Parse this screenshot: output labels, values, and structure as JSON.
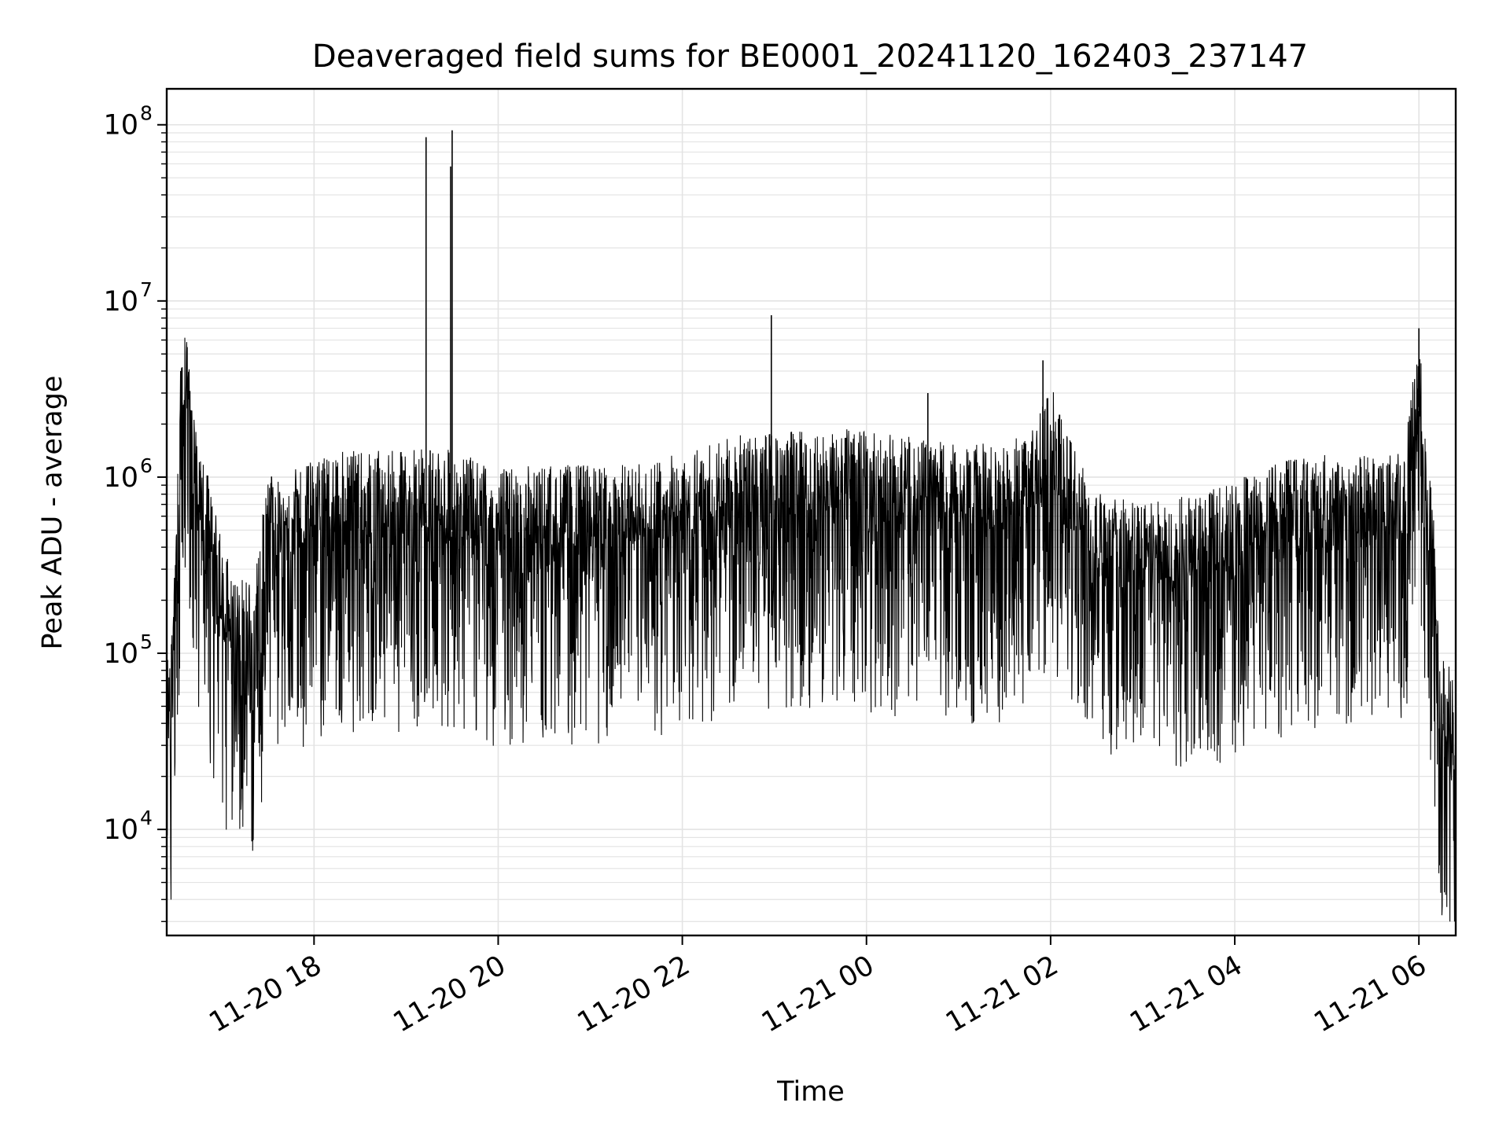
{
  "chart_data": {
    "type": "line",
    "title": "Deaveraged field sums for BE0001_20241120_162403_237147",
    "xlabel": "Time",
    "ylabel": "Peak ADU - average",
    "yscale": "log",
    "grid": true,
    "series_color": "#000000",
    "grid_color": "#e3e3e3",
    "xlim": [
      "2024-11-20 16:24",
      "2024-11-21 06:24"
    ],
    "ylim": [
      2500,
      160000000
    ],
    "x_ticks": [
      {
        "value": "2024-11-20 18:00",
        "label": "11-20 18"
      },
      {
        "value": "2024-11-20 20:00",
        "label": "11-20 20"
      },
      {
        "value": "2024-11-20 22:00",
        "label": "11-20 22"
      },
      {
        "value": "2024-11-21 00:00",
        "label": "11-21 00"
      },
      {
        "value": "2024-11-21 02:00",
        "label": "11-21 02"
      },
      {
        "value": "2024-11-21 04:00",
        "label": "11-21 04"
      },
      {
        "value": "2024-11-21 06:00",
        "label": "11-21 06"
      }
    ],
    "y_ticks": [
      {
        "value": 10000,
        "base": "10",
        "exp": "4"
      },
      {
        "value": 100000,
        "base": "10",
        "exp": "5"
      },
      {
        "value": 1000000,
        "base": "10",
        "exp": "6"
      },
      {
        "value": 10000000,
        "base": "10",
        "exp": "7"
      },
      {
        "value": 100000000,
        "base": "10",
        "exp": "8"
      }
    ],
    "series": [
      {
        "x": [
          "2024-11-20 16:24",
          "2024-11-20 16:27",
          "2024-11-20 16:30",
          "2024-11-20 16:33",
          "2024-11-20 16:36",
          "2024-11-20 16:39",
          "2024-11-20 16:42",
          "2024-11-20 16:45",
          "2024-11-20 16:50",
          "2024-11-20 16:55",
          "2024-11-20 17:00",
          "2024-11-20 17:10",
          "2024-11-20 17:20",
          "2024-11-20 17:30",
          "2024-11-20 17:40",
          "2024-11-20 17:50",
          "2024-11-20 18:00",
          "2024-11-20 18:15",
          "2024-11-20 18:30",
          "2024-11-20 18:45",
          "2024-11-20 19:00",
          "2024-11-20 19:13",
          "2024-11-20 19:30",
          "2024-11-20 19:45",
          "2024-11-20 20:00",
          "2024-11-20 20:30",
          "2024-11-20 21:00",
          "2024-11-20 21:30",
          "2024-11-20 22:00",
          "2024-11-20 22:30",
          "2024-11-20 23:00",
          "2024-11-20 23:30",
          "2024-11-21 00:00",
          "2024-11-21 00:30",
          "2024-11-21 01:00",
          "2024-11-21 01:30",
          "2024-11-21 01:50",
          "2024-11-21 02:00",
          "2024-11-21 02:10",
          "2024-11-21 02:30",
          "2024-11-21 03:00",
          "2024-11-21 03:30",
          "2024-11-21 04:00",
          "2024-11-21 04:30",
          "2024-11-21 05:00",
          "2024-11-21 05:30",
          "2024-11-21 05:50",
          "2024-11-21 06:00",
          "2024-11-21 06:05",
          "2024-11-21 06:10",
          "2024-11-21 06:15",
          "2024-11-21 06:20",
          "2024-11-21 06:24"
        ],
        "y": [
          30000,
          50000,
          150000,
          1500000,
          2500000,
          1500000,
          800000,
          600000,
          400000,
          250000,
          150000,
          100000,
          90000,
          350000,
          400000,
          400000,
          450000,
          500000,
          500000,
          500000,
          500000,
          550000,
          500000,
          450000,
          400000,
          420000,
          420000,
          420000,
          500000,
          600000,
          650000,
          680000,
          650000,
          600000,
          550000,
          550000,
          700000,
          1200000,
          700000,
          300000,
          250000,
          280000,
          350000,
          450000,
          480000,
          480000,
          500000,
          2500000,
          600000,
          200000,
          35000,
          30000,
          20000
        ]
      }
    ],
    "spikes": [
      {
        "x": "2024-11-20 19:13",
        "y": 85000000
      },
      {
        "x": "2024-11-20 19:30",
        "y": 93000000
      },
      {
        "x": "2024-11-20 19:29",
        "y": 58000000
      },
      {
        "x": "2024-11-20 22:58",
        "y": 8300000
      },
      {
        "x": "2024-11-21 06:00",
        "y": 7000000
      },
      {
        "x": "2024-11-20 16:34",
        "y": 4200000
      },
      {
        "x": "2024-11-21 01:55",
        "y": 4600000
      },
      {
        "x": "2024-11-21 00:40",
        "y": 3000000
      }
    ]
  }
}
